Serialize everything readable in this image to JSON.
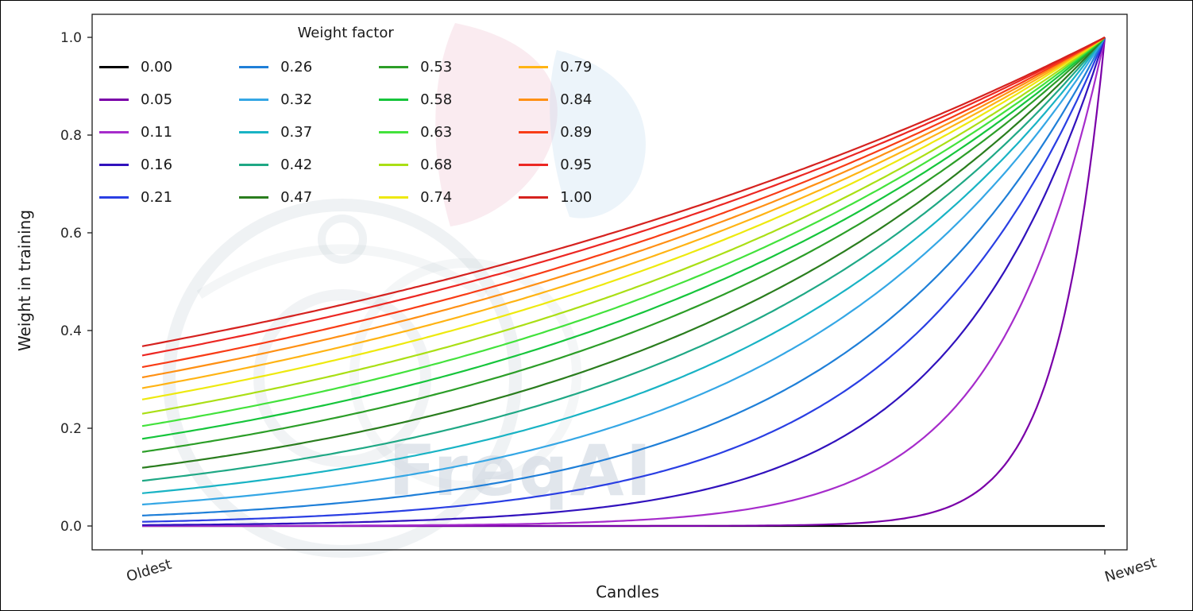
{
  "figure": {
    "watermark_text": "FreqAI",
    "background_color": "#ffffff"
  },
  "chart_data": {
    "type": "line",
    "title": "",
    "xlabel": "Candles",
    "ylabel": "Weight in training",
    "x_tick_labels": [
      "Oldest",
      "Newest"
    ],
    "y_ticks": [
      "0.0",
      "0.2",
      "0.4",
      "0.6",
      "0.8",
      "1.0"
    ],
    "ylim": [
      0,
      1
    ],
    "grid": false,
    "legend": {
      "title": "Weight factor",
      "position": "upper left",
      "columns": 4,
      "fill_order": "column-major"
    },
    "curve_formula": "weight(x) = exp(-(1 - x) / factor), x from 0 (oldest candle) to 1 (newest candle); factor 0.00 stays flat at 0",
    "x_sample_positions": [
      0,
      0.25,
      0.5,
      0.75,
      1
    ],
    "series": [
      {
        "label": "0.00",
        "factor": 0.0,
        "color": "#000000",
        "values": [
          0,
          0,
          0,
          0,
          0
        ]
      },
      {
        "label": "0.05",
        "factor": 0.05,
        "color": "#7a00a8",
        "values": [
          0,
          0,
          0,
          0.0067,
          1
        ]
      },
      {
        "label": "0.11",
        "factor": 0.11,
        "color": "#a62ccb",
        "values": [
          0.0001,
          0.0011,
          0.0106,
          0.1029,
          1
        ]
      },
      {
        "label": "0.16",
        "factor": 0.16,
        "color": "#3112bd",
        "values": [
          0.0019,
          0.0092,
          0.0439,
          0.2096,
          1
        ]
      },
      {
        "label": "0.21",
        "factor": 0.21,
        "color": "#2a3fe3",
        "values": [
          0.0086,
          0.0281,
          0.0924,
          0.3042,
          1
        ]
      },
      {
        "label": "0.26",
        "factor": 0.26,
        "color": "#1f7fd8",
        "values": [
          0.0214,
          0.0559,
          0.1462,
          0.3823,
          1
        ]
      },
      {
        "label": "0.32",
        "factor": 0.32,
        "color": "#35a7e5",
        "values": [
          0.0439,
          0.096,
          0.2096,
          0.4578,
          1
        ]
      },
      {
        "label": "0.37",
        "factor": 0.37,
        "color": "#19b3c4",
        "values": [
          0.067,
          0.1317,
          0.2589,
          0.5087,
          1
        ]
      },
      {
        "label": "0.42",
        "factor": 0.42,
        "color": "#1fa885",
        "values": [
          0.0924,
          0.1677,
          0.3042,
          0.5515,
          1
        ]
      },
      {
        "label": "0.47",
        "factor": 0.47,
        "color": "#2a7d1e",
        "values": [
          0.119,
          0.2027,
          0.3452,
          0.5874,
          1
        ]
      },
      {
        "label": "0.53",
        "factor": 0.53,
        "color": "#2c9e28",
        "values": [
          0.1516,
          0.2429,
          0.3894,
          0.624,
          1
        ]
      },
      {
        "label": "0.58",
        "factor": 0.58,
        "color": "#16c53c",
        "values": [
          0.1784,
          0.2744,
          0.4223,
          0.6498,
          1
        ]
      },
      {
        "label": "0.63",
        "factor": 0.63,
        "color": "#43e23c",
        "values": [
          0.2045,
          0.3042,
          0.4522,
          0.6724,
          1
        ]
      },
      {
        "label": "0.68",
        "factor": 0.68,
        "color": "#aadf15",
        "values": [
          0.2298,
          0.3319,
          0.4795,
          0.6922,
          1
        ]
      },
      {
        "label": "0.74",
        "factor": 0.74,
        "color": "#eee90e",
        "values": [
          0.2589,
          0.3629,
          0.5087,
          0.7132,
          1
        ]
      },
      {
        "label": "0.79",
        "factor": 0.79,
        "color": "#ffb414",
        "values": [
          0.282,
          0.3869,
          0.5312,
          0.7287,
          1
        ]
      },
      {
        "label": "0.84",
        "factor": 0.84,
        "color": "#ff9014",
        "values": [
          0.3042,
          0.4095,
          0.5515,
          0.7425,
          1
        ]
      },
      {
        "label": "0.89",
        "factor": 0.89,
        "color": "#f83c16",
        "values": [
          0.3251,
          0.4307,
          0.5701,
          0.7551,
          1
        ]
      },
      {
        "label": "0.95",
        "factor": 0.95,
        "color": "#ec2723",
        "values": [
          0.3489,
          0.4541,
          0.5908,
          0.7686,
          1
        ]
      },
      {
        "label": "1.00",
        "factor": 1.0,
        "color": "#d5221f",
        "values": [
          0.3679,
          0.4724,
          0.6065,
          0.7788,
          1
        ]
      }
    ]
  }
}
